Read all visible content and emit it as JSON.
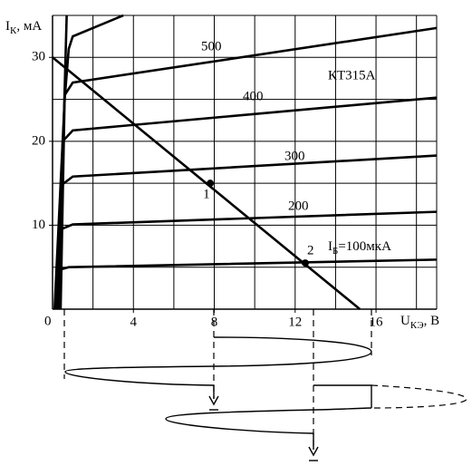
{
  "chart_data": {
    "type": "line",
    "title": "КТ315А",
    "y_label": [
      "I",
      "К",
      ", мА"
    ],
    "x_label": [
      "U",
      "КЭ",
      ", В"
    ],
    "origin_label": "0",
    "xlim": [
      0,
      19
    ],
    "ylim": [
      0,
      35
    ],
    "xticks": [
      4,
      8,
      12,
      16
    ],
    "yticks": [
      10,
      20,
      30
    ],
    "xgrid": [
      2,
      4,
      6,
      8,
      10,
      12,
      14,
      16,
      18,
      19
    ],
    "ygrid": [
      5,
      10,
      15,
      20,
      25,
      30,
      35
    ],
    "grid": true,
    "series": [
      {
        "color": "#000000",
        "x": [
          0.3,
          0.7
        ],
        "values": [
          0,
          35
        ]
      },
      {
        "color": "#000000",
        "x": [
          0.1,
          0.6,
          0.8,
          1.0,
          3.5
        ],
        "values": [
          0,
          25,
          31,
          32.5,
          35
        ]
      },
      {
        "name": "500",
        "color": "#000000",
        "x": [
          0.4,
          0.6,
          1,
          19
        ],
        "values": [
          0,
          25.5,
          27,
          33.5
        ]
      },
      {
        "name": "400",
        "color": "#000000",
        "x": [
          0.3,
          0.5,
          1,
          19
        ],
        "values": [
          0,
          20,
          21.3,
          25.2
        ]
      },
      {
        "name": "300",
        "color": "#000000",
        "x": [
          0.25,
          0.45,
          1,
          19
        ],
        "values": [
          0,
          14.8,
          15.8,
          18.3
        ]
      },
      {
        "name": "200",
        "color": "#000000",
        "x": [
          0.2,
          0.4,
          1,
          19
        ],
        "values": [
          0,
          9.5,
          10.1,
          11.6
        ]
      },
      {
        "name": [
          "I",
          "Б",
          "=100мкА"
        ],
        "color": "#000000",
        "x": [
          0.15,
          0.35,
          0.8,
          19
        ],
        "values": [
          0,
          4.7,
          5,
          5.9
        ]
      },
      {
        "color": "#000000",
        "x": [
          0,
          15.2
        ],
        "values": [
          30,
          0
        ]
      }
    ],
    "points": [
      {
        "label": "1",
        "x": 7.8,
        "y": 15
      },
      {
        "label": "2",
        "x": 12.5,
        "y": 5.5
      }
    ]
  }
}
